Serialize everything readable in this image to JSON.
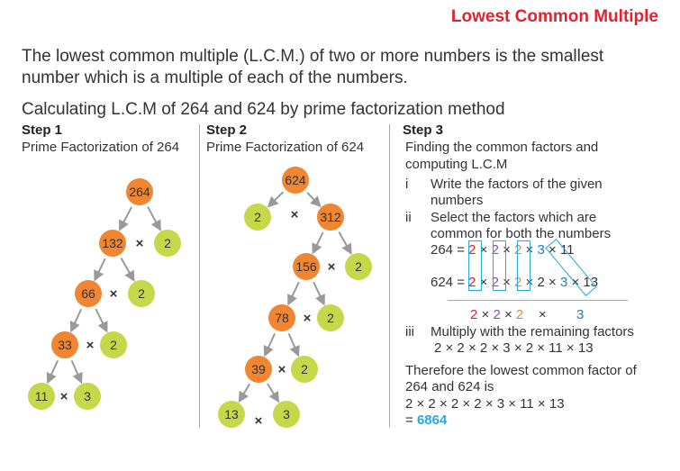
{
  "title": "Lowest Common Multiple",
  "intro": [
    "The lowest common multiple (L.C.M.) of two or more numbers is the smallest",
    "number which is a multiple of each of the numbers."
  ],
  "subtitle": "Calculating L.C.M of 264 and 624 by prime factorization method",
  "step1": {
    "heading": "Step 1",
    "caption": "Prime Factorization of 264",
    "nodes": [
      [
        "264",
        "o"
      ],
      [
        "132",
        "o"
      ],
      [
        "2",
        "g"
      ],
      [
        "66",
        "o"
      ],
      [
        "2",
        "g"
      ],
      [
        "33",
        "o"
      ],
      [
        "2",
        "g"
      ],
      [
        "11",
        "g"
      ],
      [
        "3",
        "g"
      ]
    ]
  },
  "step2": {
    "heading": "Step 2",
    "caption": "Prime Factorization of 624",
    "nodes": [
      [
        "624",
        "o"
      ],
      [
        "2",
        "g"
      ],
      [
        "312",
        "o"
      ],
      [
        "156",
        "o"
      ],
      [
        "2",
        "g"
      ],
      [
        "78",
        "o"
      ],
      [
        "2",
        "g"
      ],
      [
        "39",
        "o"
      ],
      [
        "2",
        "g"
      ],
      [
        "13",
        "g"
      ],
      [
        "3",
        "g"
      ]
    ]
  },
  "times": "×",
  "step3": {
    "heading": "Step 3",
    "intro": [
      "Finding the common factors and",
      "computing L.C.M"
    ],
    "i_num": "i",
    "i_text": [
      "Write the factors of the given",
      "numbers"
    ],
    "ii_num": "ii",
    "ii_text": [
      "Select the factors which are",
      "common for both the numbers"
    ],
    "row1": {
      "lhs": "264 =",
      "factors": [
        "2",
        "2",
        "2",
        "3",
        "11"
      ]
    },
    "row2": {
      "lhs": "624 =",
      "factors": [
        "2",
        "2",
        "2",
        "2",
        "3",
        "13"
      ]
    },
    "common": [
      "2",
      "2",
      "2",
      "3"
    ],
    "iii_num": "iii",
    "iii_text": "Multiply with the remaining factors",
    "iii_expr": "2 × 2 × 2 × 3 × 2 × 11 × 13",
    "conclusion": [
      "Therefore the lowest common factor of",
      "264 and 624 is"
    ],
    "final_expr": "2 × 2 × 2 × 2 × 3 × 11 × 13",
    "result_prefix": "=",
    "result": "6864"
  },
  "colors": {
    "orange": "#f08532",
    "green": "#c5d84a",
    "red": "#e2222e",
    "purple": "#8b4fa5",
    "orangeText": "#f08532",
    "blue": "#1a7dc4",
    "box": "#29a9e0",
    "result": "#29a9e0"
  }
}
